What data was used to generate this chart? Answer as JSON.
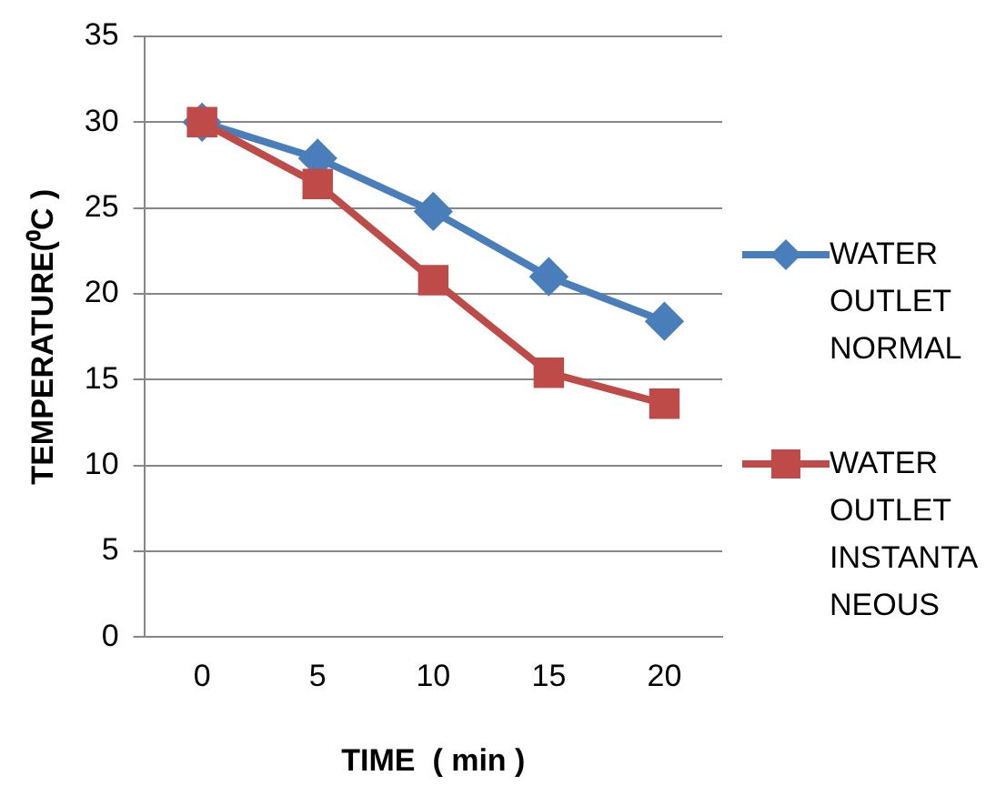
{
  "chart_data": {
    "type": "line",
    "xlabel": "TIME  ( min )",
    "ylabel": "TEMPERATURE(⁰C )",
    "categories": [
      "0",
      "5",
      "10",
      "15",
      "20"
    ],
    "series": [
      {
        "name": "WATER OUTLET NORMAL",
        "color": "#4a7ebb",
        "marker": "diamond",
        "values": [
          30,
          27.9,
          24.8,
          21,
          18.4
        ]
      },
      {
        "name": "WATER OUTLET INSTANTANEOUS",
        "color": "#be4b48",
        "marker": "square",
        "values": [
          30,
          26.4,
          20.8,
          15.4,
          13.6
        ]
      }
    ],
    "ylim": [
      0,
      35
    ],
    "yticks": [
      0,
      5,
      10,
      15,
      20,
      25,
      30,
      35
    ],
    "grid": "y",
    "legend": "right"
  }
}
